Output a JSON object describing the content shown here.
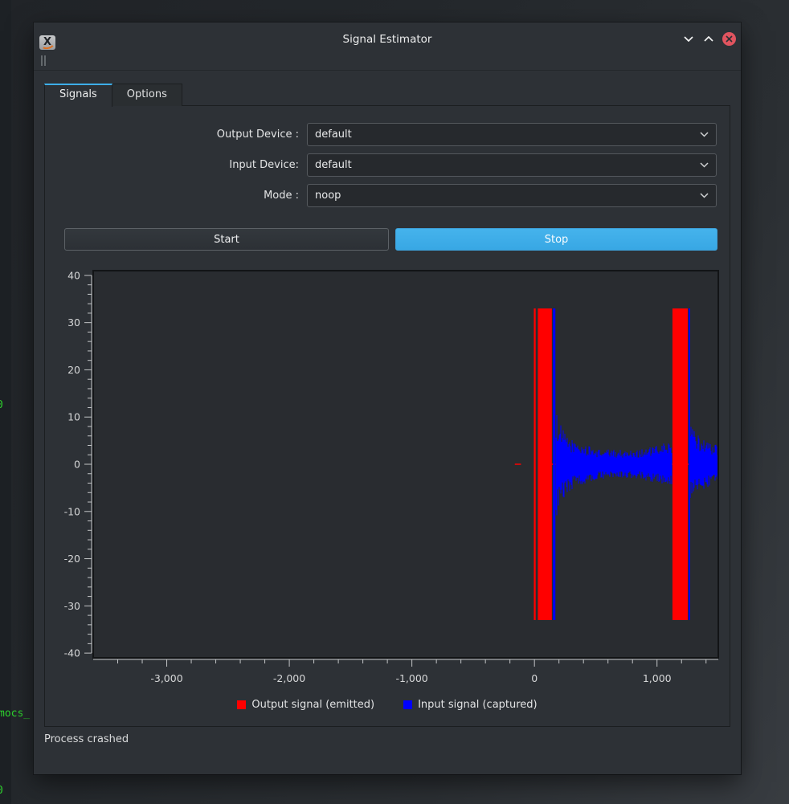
{
  "window": {
    "title": "Signal Estimator",
    "icon_letter": "X",
    "controls": {
      "minimize_icon": "chevron-down",
      "maximize_icon": "chevron-up",
      "close_icon": "close-x"
    }
  },
  "tabs": [
    {
      "label": "Signals",
      "active": true
    },
    {
      "label": "Options",
      "active": false
    }
  ],
  "form": {
    "fields": [
      {
        "label": "Output Device :",
        "value": "default"
      },
      {
        "label": "Input Device:",
        "value": "default"
      },
      {
        "label": "Mode :",
        "value": "noop"
      }
    ]
  },
  "actions": {
    "start": "Start",
    "stop": "Stop"
  },
  "status": "Process crashed",
  "background_terminal": {
    "color": "#2ed52e",
    "lines": [
      "0",
      "mocs_",
      "0"
    ]
  },
  "colors": {
    "accent": "#3daee9",
    "window_bg": "#2d3136",
    "canvas_bg": "#292c30",
    "close_button": "#e0545f",
    "output_signal": "#ff0000",
    "input_signal": "#0000ff"
  },
  "chart_data": {
    "type": "line",
    "title": "",
    "xlabel": "",
    "ylabel": "",
    "grid": false,
    "legend_position": "bottom",
    "xlim": [
      -3600,
      1500
    ],
    "ylim": [
      -41,
      41
    ],
    "x_major_ticks": [
      {
        "value": -3000,
        "label": "-3,000"
      },
      {
        "value": -2000,
        "label": "-2,000"
      },
      {
        "value": -1000,
        "label": "-1,000"
      },
      {
        "value": 0,
        "label": "0"
      },
      {
        "value": 1000,
        "label": "1,000"
      }
    ],
    "x_minor_step": 200,
    "y_major_ticks": [
      {
        "value": 40,
        "label": "40"
      },
      {
        "value": 30,
        "label": "30"
      },
      {
        "value": 20,
        "label": "20"
      },
      {
        "value": 10,
        "label": "10"
      },
      {
        "value": 0,
        "label": "0"
      },
      {
        "value": -10,
        "label": "-10"
      },
      {
        "value": -20,
        "label": "-20"
      },
      {
        "value": -30,
        "label": "-30"
      },
      {
        "value": -40,
        "label": "-40"
      }
    ],
    "y_minor_step": 2,
    "series": [
      {
        "name": "Output signal (emitted)",
        "color": "#ff0000",
        "kind": "bursts",
        "baseline_y": 0,
        "baseline_segments": [
          {
            "x0": -160,
            "x1": -110
          },
          {
            "x0": 142,
            "x1": 1126
          },
          {
            "x0": 1251,
            "x1": 1280
          }
        ],
        "bursts": [
          {
            "x0": -5,
            "x1": 10,
            "amplitude": 33
          },
          {
            "x0": 28,
            "x1": 142,
            "amplitude": 33
          },
          {
            "x0": 1126,
            "x1": 1251,
            "amplitude": 33
          }
        ]
      },
      {
        "name": "Input signal (captured)",
        "color": "#0000ff",
        "kind": "noise",
        "spikes": [
          {
            "x0": 151,
            "x1": 171,
            "amplitude": 33
          },
          {
            "x0": 1257,
            "x1": 1270,
            "amplitude": 33
          }
        ],
        "noise_regions": [
          {
            "envelope": [
              [
                171,
                12
              ],
              [
                210,
                8.5
              ],
              [
                265,
                6
              ],
              [
                360,
                4.5
              ],
              [
                520,
                3.2
              ],
              [
                820,
                3
              ],
              [
                980,
                3.8
              ],
              [
                1070,
                4.6
              ],
              [
                1126,
                5
              ]
            ]
          },
          {
            "envelope": [
              [
                1270,
                8.5
              ],
              [
                1320,
                6.5
              ],
              [
                1420,
                4.8
              ],
              [
                1500,
                4
              ]
            ]
          }
        ]
      }
    ],
    "legend": [
      {
        "label": "Output signal (emitted)",
        "color": "#ff0000"
      },
      {
        "label": "Input signal (captured)",
        "color": "#0000ff"
      }
    ]
  }
}
